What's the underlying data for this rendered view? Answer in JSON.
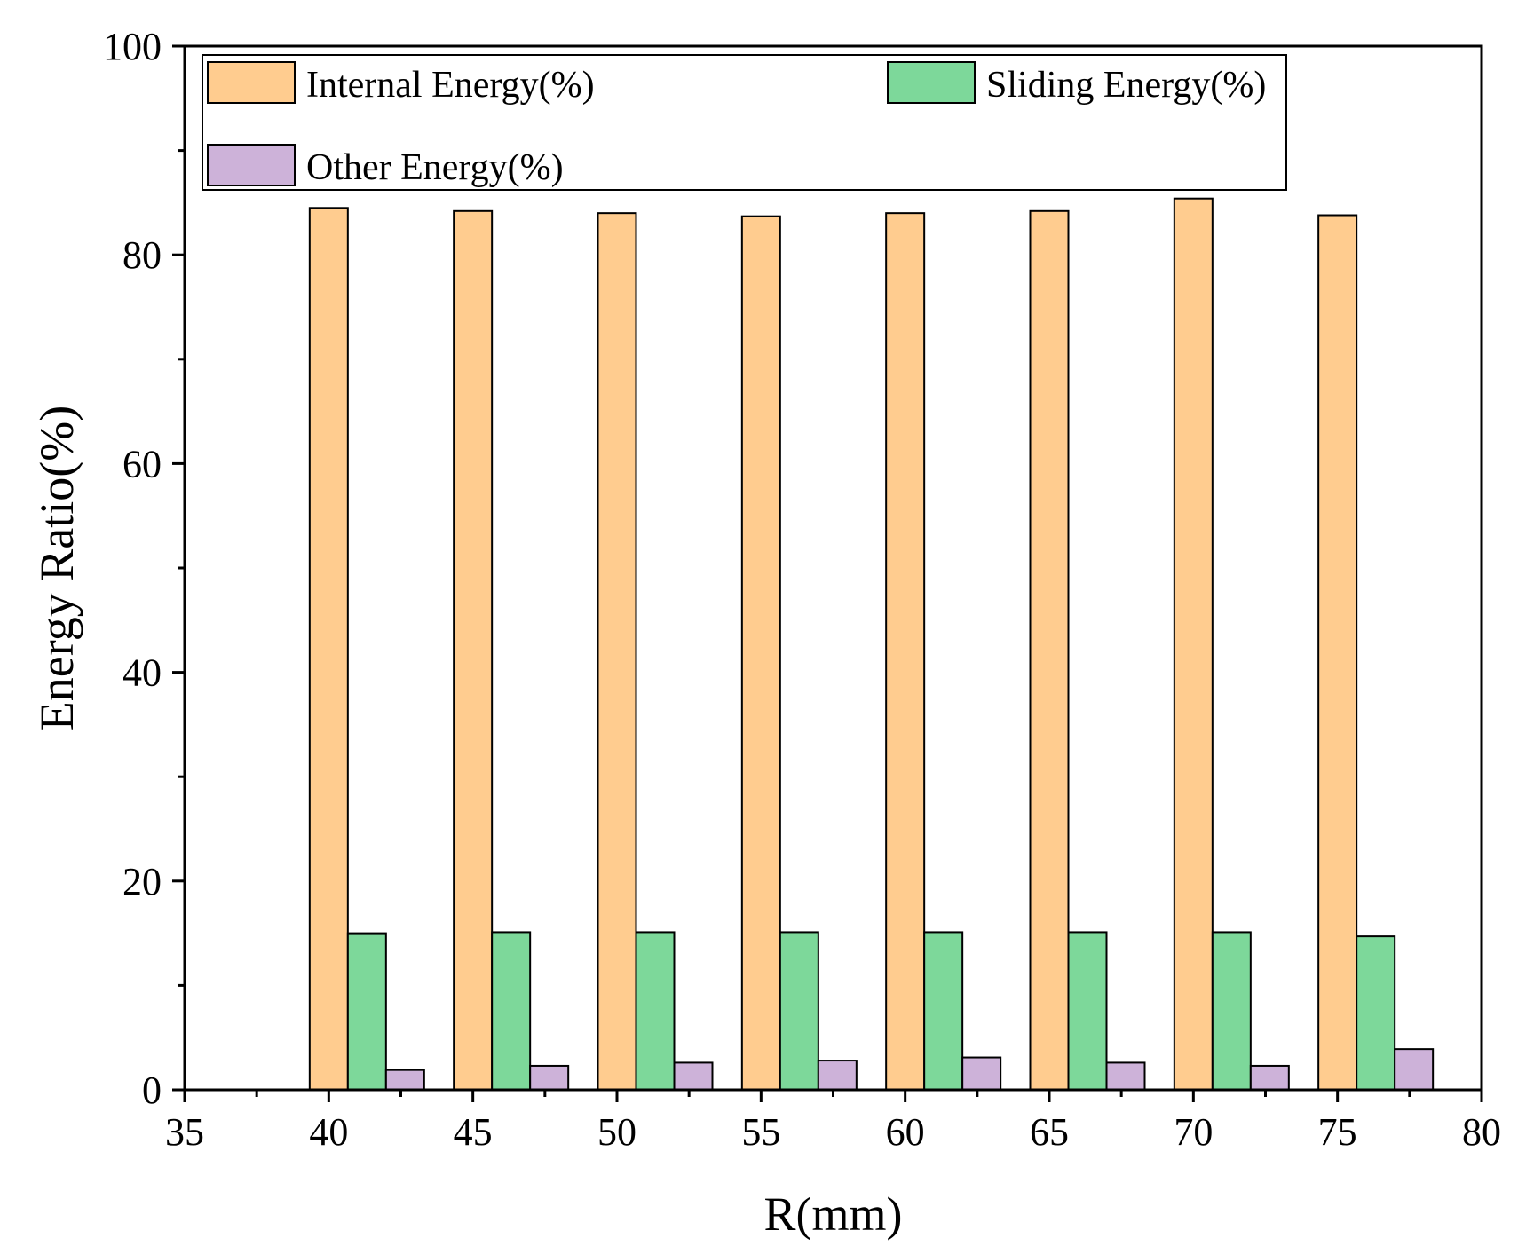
{
  "chart_data": {
    "type": "bar",
    "title": "",
    "xlabel": "R(mm)",
    "ylabel": "Energy Ratio(%)",
    "xlim": [
      35,
      80
    ],
    "ylim": [
      0,
      100
    ],
    "x_ticks": [
      "35",
      "40",
      "45",
      "50",
      "55",
      "60",
      "65",
      "70",
      "75",
      "80"
    ],
    "y_ticks": [
      "0",
      "20",
      "40",
      "60",
      "80",
      "100"
    ],
    "categories": [
      40,
      45,
      50,
      55,
      60,
      65,
      70,
      75
    ],
    "series": [
      {
        "name": "Internal Energy(%)",
        "color": "#FFCC8F",
        "values": [
          84.5,
          84.2,
          84.0,
          83.7,
          84.0,
          84.2,
          85.4,
          83.8
        ]
      },
      {
        "name": "Sliding Energy(%)",
        "color": "#7DD89A",
        "values": [
          15.0,
          15.1,
          15.1,
          15.1,
          15.1,
          15.1,
          15.1,
          14.7
        ]
      },
      {
        "name": "Other Energy(%)",
        "color": "#CDB2D9",
        "values": [
          1.9,
          2.3,
          2.6,
          2.8,
          3.1,
          2.6,
          2.3,
          3.9
        ]
      }
    ],
    "grid": false,
    "legend_position": "top"
  }
}
